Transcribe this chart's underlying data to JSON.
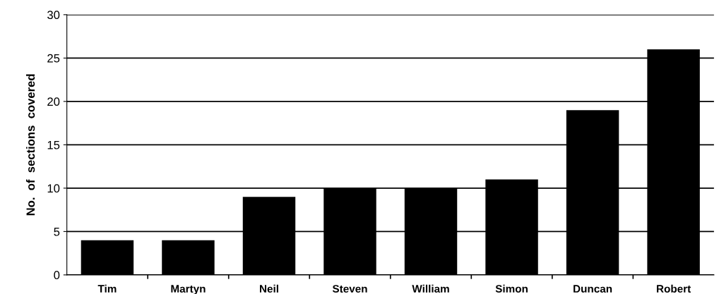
{
  "chart_data": {
    "type": "bar",
    "ylabel": "No.  of  sections  covered",
    "categories": [
      "Tim",
      "Martyn",
      "Neil",
      "Steven",
      "William",
      "Simon",
      "Duncan",
      "Robert"
    ],
    "values": [
      4,
      4,
      9,
      10,
      10,
      11,
      19,
      26
    ],
    "color": "#000000",
    "ylim": [
      0,
      30
    ],
    "yticks": [
      0,
      5,
      10,
      15,
      20,
      25,
      30
    ],
    "grid": "y"
  }
}
